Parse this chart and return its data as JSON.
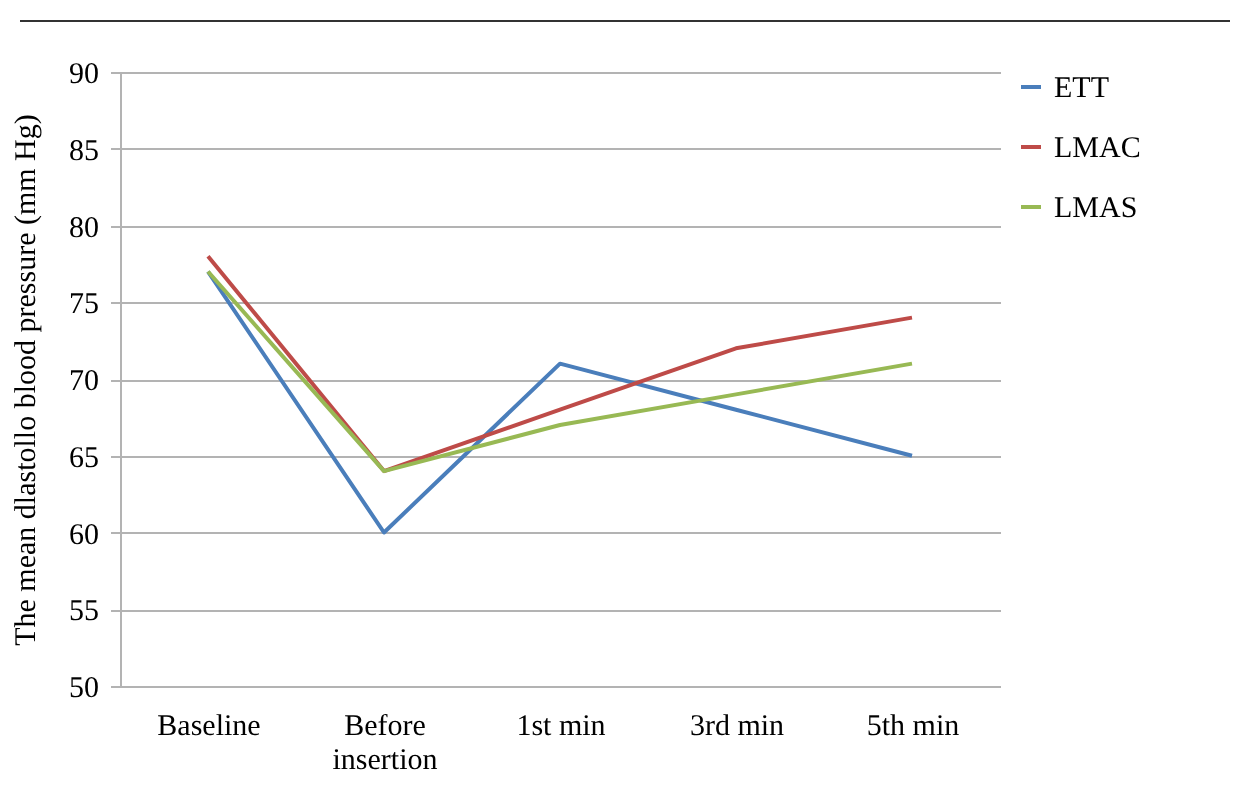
{
  "chart_data": {
    "type": "line",
    "ylabel": "The mean dlastollo blood pressure (mm Hg)",
    "categories": [
      "Baseline",
      "Before insertion",
      "1st min",
      "3rd min",
      "5th min"
    ],
    "series": [
      {
        "name": "ETT",
        "color": "#4a7ebb",
        "values": [
          77,
          60,
          71,
          68,
          65
        ]
      },
      {
        "name": "LMAC",
        "color": "#be4b48",
        "values": [
          78,
          64,
          68,
          72,
          74
        ]
      },
      {
        "name": "LMAS",
        "color": "#98b954",
        "values": [
          77,
          64,
          67,
          69,
          71
        ]
      }
    ],
    "ylim": [
      50,
      90
    ],
    "yticks": [
      50,
      55,
      60,
      65,
      70,
      75,
      80,
      85,
      90
    ],
    "grid": "y",
    "legend": "right",
    "marker": "none",
    "line_style": "solid"
  }
}
